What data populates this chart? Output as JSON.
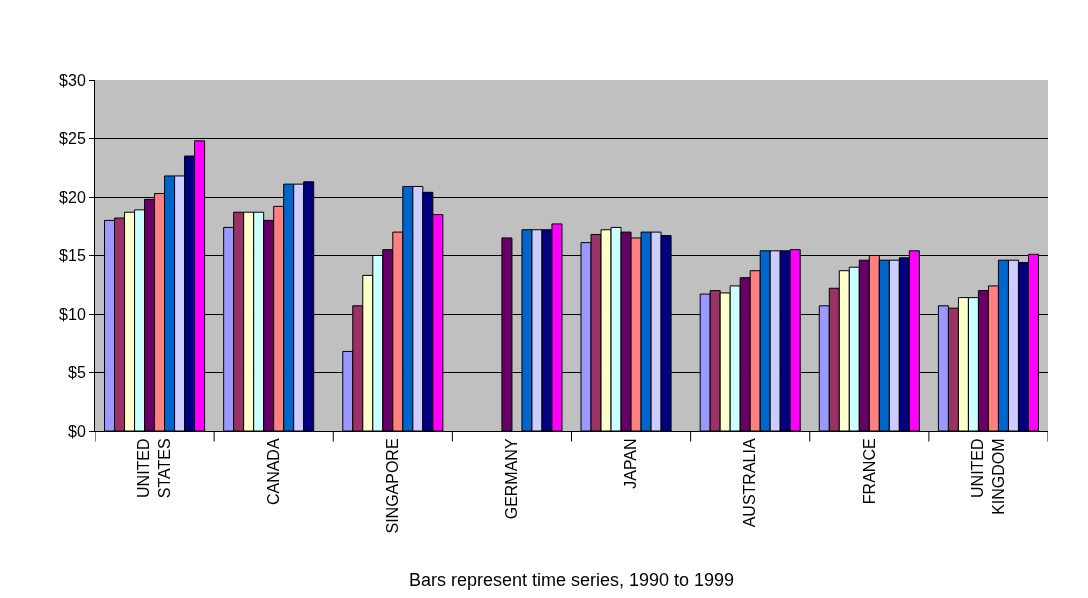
{
  "chart_data": {
    "type": "bar",
    "xlabel": "Bars represent time series, 1990 to 1999",
    "categories": [
      "UNITED STATES",
      "CANADA",
      "SINGAPORE",
      "GERMANY",
      "JAPAN",
      "AUSTRALIA",
      "FRANCE",
      "UNITED KINGDOM"
    ],
    "series": [
      {
        "color": "#9999ff",
        "values": [
          18.0,
          17.4,
          6.8,
          null,
          16.1,
          11.7,
          10.7,
          10.7
        ]
      },
      {
        "color": "#993366",
        "values": [
          18.2,
          18.7,
          10.7,
          null,
          16.8,
          12.0,
          12.2,
          10.5
        ]
      },
      {
        "color": "#ffffcc",
        "values": [
          18.7,
          18.7,
          13.3,
          null,
          17.2,
          11.8,
          13.7,
          11.4
        ]
      },
      {
        "color": "#ccffff",
        "values": [
          18.9,
          18.7,
          15.0,
          null,
          17.4,
          12.4,
          14.0,
          11.4
        ]
      },
      {
        "color": "#660066",
        "values": [
          19.8,
          18.0,
          15.5,
          16.5,
          17.0,
          13.1,
          14.6,
          12.0
        ]
      },
      {
        "color": "#ff8080",
        "values": [
          20.3,
          19.2,
          17.0,
          null,
          16.5,
          13.7,
          15.0,
          12.4
        ]
      },
      {
        "color": "#0066cc",
        "values": [
          21.8,
          21.1,
          20.9,
          17.2,
          17.0,
          15.4,
          14.6,
          14.6
        ]
      },
      {
        "color": "#ccccff",
        "values": [
          21.8,
          21.1,
          20.9,
          17.2,
          17.0,
          15.4,
          14.6,
          14.6
        ]
      },
      {
        "color": "#000080",
        "values": [
          23.5,
          21.3,
          20.4,
          17.2,
          16.7,
          15.4,
          14.8,
          14.4
        ]
      },
      {
        "color": "#ff00ff",
        "values": [
          24.8,
          null,
          18.5,
          17.7,
          null,
          15.5,
          15.4,
          15.1
        ]
      }
    ],
    "ylim": [
      0,
      30
    ],
    "yticks": [
      {
        "value": 0,
        "label": "$0"
      },
      {
        "value": 5,
        "label": "$5"
      },
      {
        "value": 10,
        "label": "$10"
      },
      {
        "value": 15,
        "label": "$15"
      },
      {
        "value": 20,
        "label": "$20"
      },
      {
        "value": 25,
        "label": "$25"
      },
      {
        "value": 30,
        "label": "$30"
      }
    ],
    "grid": "y"
  }
}
